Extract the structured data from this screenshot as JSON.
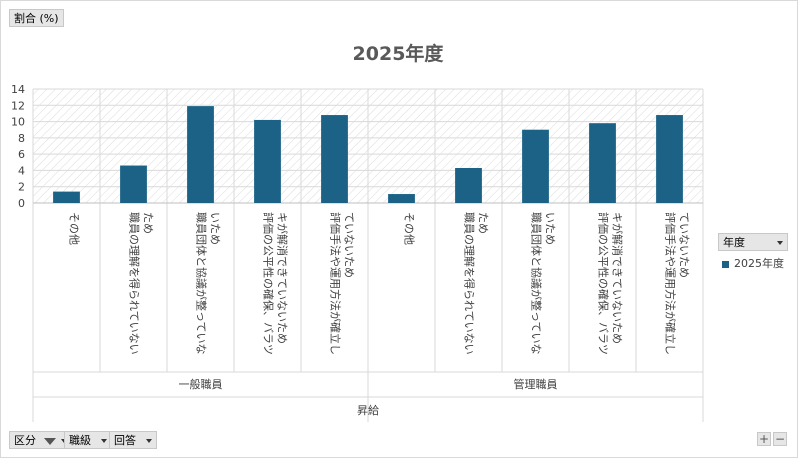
{
  "top_button": {
    "label": "割合 (%)"
  },
  "chart_data": {
    "type": "bar",
    "title": "2025年度",
    "ylim": [
      0,
      14
    ],
    "yticks": [
      0,
      2,
      4,
      6,
      8,
      10,
      12,
      14
    ],
    "grid": true,
    "legend_position": "right",
    "outer_label": "昇給",
    "groups": [
      {
        "name": "一般職員",
        "categories": [
          "その他",
          "職員の理解を得られていないため",
          "職員団体と協議が整っていないため",
          "評価の公平性の確保、バラツキが解消できていないため",
          "評価手法や運用方法が確立していないため"
        ],
        "values": [
          1.4,
          4.6,
          11.9,
          10.2,
          10.8
        ]
      },
      {
        "name": "管理職員",
        "categories": [
          "その他",
          "職員の理解を得られていないため",
          "職員団体と協議が整っていないため",
          "評価の公平性の確保、バラツキが解消できていないため",
          "評価手法や運用方法が確立していないため"
        ],
        "values": [
          1.1,
          4.3,
          9.0,
          9.8,
          10.8
        ]
      }
    ],
    "category_label_lines": [
      [
        "その他"
      ],
      [
        "職員の理解を得られていない",
        "ため"
      ],
      [
        "職員団体と協議が整っていな",
        "いため"
      ],
      [
        "評価の公平性の確保、バラツ",
        "キが解消できていないため"
      ],
      [
        "評価手法や運用方法が確立し",
        "ていないため"
      ]
    ],
    "series": [
      {
        "name": "2025年度",
        "color": "#1b6286"
      }
    ]
  },
  "legend": {
    "field_label": "年度",
    "items": [
      "2025年度"
    ]
  },
  "bottom_buttons": {
    "kubun": "区分",
    "shokkyu": "職級",
    "kaito": "回答"
  },
  "zoom": {
    "plus": "+",
    "minus": "−"
  }
}
